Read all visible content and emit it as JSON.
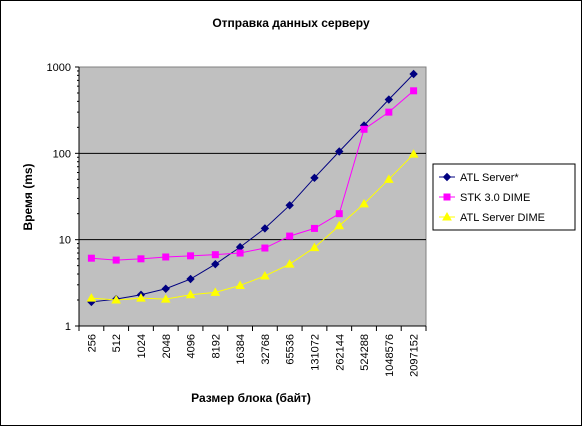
{
  "chart_data": {
    "type": "line",
    "title": "Отправка данных серверу",
    "xlabel": "Размер блока (байт)",
    "ylabel": "Время (ms)",
    "y_scale": "log",
    "ylim": [
      1,
      1000
    ],
    "y_ticks": [
      "1",
      "10",
      "100",
      "1000"
    ],
    "grid": "horizontal major gridlines",
    "legend_position": "right",
    "plot_area_color": "#C0C0C0",
    "categories": [
      "256",
      "512",
      "1024",
      "2048",
      "4096",
      "8192",
      "16384",
      "32768",
      "65536",
      "131072",
      "262144",
      "524288",
      "1048576",
      "2097152"
    ],
    "series": [
      {
        "name": "ATL Server*",
        "color": "#000080",
        "marker": "diamond",
        "values": [
          1.9,
          2.05,
          2.3,
          2.7,
          3.5,
          5.2,
          8.2,
          13.5,
          25,
          52,
          105,
          210,
          420,
          830
        ]
      },
      {
        "name": "STK 3.0 DIME",
        "color": "#FF00FF",
        "marker": "square",
        "values": [
          6.1,
          5.8,
          6.0,
          6.3,
          6.5,
          6.7,
          7.0,
          8.0,
          11,
          13.5,
          20,
          190,
          300,
          530
        ]
      },
      {
        "name": "ATL Server DIME",
        "color": "#FFFF00",
        "marker": "triangle",
        "values": [
          2.1,
          2.0,
          2.1,
          2.05,
          2.3,
          2.45,
          2.95,
          3.8,
          5.2,
          8.1,
          14.5,
          26,
          50,
          98
        ]
      }
    ]
  }
}
